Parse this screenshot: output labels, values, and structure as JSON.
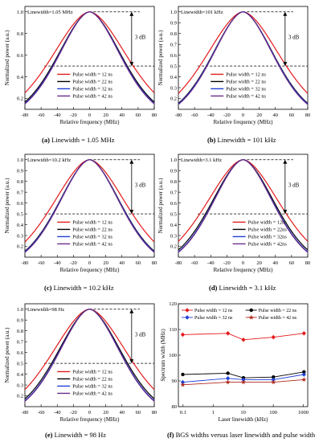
{
  "chart_data": [
    {
      "type": "line",
      "caption_letter": "(a)",
      "caption_text": "Linewidth = 1.05 MHz",
      "annotation": "Linewidth=1.05 MHz",
      "db_label": "3 dB",
      "xlabel": "Relative frequency (MHz)",
      "ylabel": "Normalized power (a.u.)",
      "xlim": [
        -80,
        80
      ],
      "ylim": [
        0.1,
        1.05
      ],
      "xticks": [
        "-80",
        "-60",
        "-40",
        "-20",
        "0",
        "20",
        "40",
        "60",
        "80"
      ],
      "yticks": [
        "0.2",
        "0.4",
        "0.6",
        "0.8",
        "1.0"
      ],
      "legend_position": "lower-center",
      "series": [
        {
          "name": "Pulse width = 12 ns",
          "color": "#e41a1c",
          "fwhm": 108
        },
        {
          "name": "Pulse width = 22 ns",
          "color": "#000000",
          "fwhm": 93
        },
        {
          "name": "Pulse width = 32 ns",
          "color": "#1f3fd6",
          "fwhm": 91
        },
        {
          "name": "Pulse width = 42 ns",
          "color": "#6a2a8a",
          "fwhm": 90
        }
      ]
    },
    {
      "type": "line",
      "caption_letter": "(b)",
      "caption_text": "Linewidth = 101 kHz",
      "annotation": "Linewidth=101 kHz",
      "db_label": "3 dB",
      "xlabel": "Relative frequency (MHz)",
      "ylabel": "Normalized power (a.u.)",
      "xlim": [
        -80,
        80
      ],
      "ylim": [
        0.1,
        1.05
      ],
      "xticks": [
        "-80",
        "-60",
        "-40",
        "-20",
        "0",
        "20",
        "40",
        "60",
        "80"
      ],
      "yticks": [
        "0.2",
        "0.3",
        "0.4",
        "0.5",
        "0.6",
        "0.7",
        "0.8",
        "0.9",
        "1.0"
      ],
      "legend_position": "lower-center",
      "series": [
        {
          "name": "Pulse width = 12 ns",
          "color": "#e41a1c",
          "fwhm": 107
        },
        {
          "name": "Pulse width = 22 ns",
          "color": "#000000",
          "fwhm": 91
        },
        {
          "name": "Pulse width = 32 ns",
          "color": "#1f3fd6",
          "fwhm": 90
        },
        {
          "name": "Pulse width = 42 ns",
          "color": "#6a2a8a",
          "fwhm": 89
        }
      ]
    },
    {
      "type": "line",
      "caption_letter": "(c)",
      "caption_text": "Linewidth = 10.2 kHz",
      "annotation": "Linewidth=10.2 kHz",
      "db_label": "3 dB",
      "xlabel": "Relative frequency (MHz)",
      "ylabel": "Normalized power (a.u.)",
      "xlim": [
        -80,
        80
      ],
      "ylim": [
        0.1,
        1.05
      ],
      "xticks": [
        "-80",
        "-60",
        "-40",
        "-20",
        "0",
        "20",
        "40",
        "60",
        "80"
      ],
      "yticks": [
        "0.2",
        "0.3",
        "0.4",
        "0.5",
        "0.6",
        "0.7",
        "0.8",
        "0.9",
        "1.0"
      ],
      "legend_position": "lower-center",
      "series": [
        {
          "name": "Pulse width = 12 ns",
          "color": "#e41a1c",
          "fwhm": 106
        },
        {
          "name": "Pulse width = 22 ns",
          "color": "#000000",
          "fwhm": 91
        },
        {
          "name": "Pulse width = 32 ns",
          "color": "#1f3fd6",
          "fwhm": 90
        },
        {
          "name": "Pulse width = 42 ns",
          "color": "#6a2a8a",
          "fwhm": 89
        }
      ]
    },
    {
      "type": "line",
      "caption_letter": "(d)",
      "caption_text": "Linewidth = 3.1 kHz",
      "annotation": "Linewidth=3.1 kHz",
      "db_label": "3 dB",
      "xlabel": "Relative frequency (MHz)",
      "ylabel": "Normalized power (a.u.)",
      "xlim": [
        -80,
        80
      ],
      "ylim": [
        0.1,
        1.05
      ],
      "xticks": [
        "-80",
        "-60",
        "-40",
        "-20",
        "0",
        "20",
        "40",
        "60",
        "80"
      ],
      "yticks": [
        "0.2",
        "0.3",
        "0.4",
        "0.5",
        "0.6",
        "0.7",
        "0.8",
        "0.9",
        "1.0"
      ],
      "legend_position": "lower-right",
      "series": [
        {
          "name": "Pulse width = 12ns",
          "color": "#e41a1c",
          "fwhm": 107
        },
        {
          "name": "Pulse width = 22ns",
          "color": "#000000",
          "fwhm": 93
        },
        {
          "name": "Pulse width = 32ns",
          "color": "#1f3fd6",
          "fwhm": 90
        },
        {
          "name": "Pulse width = 42ns",
          "color": "#6a2a8a",
          "fwhm": 89
        }
      ]
    },
    {
      "type": "line",
      "caption_letter": "(e)",
      "caption_text": "Linewidth = 98 Hz",
      "annotation": "Linewidth=98 Hz",
      "db_label": "3 dB",
      "xlabel": "Relative frequency (MHz)",
      "ylabel": "Normalized power (a.u.)",
      "xlim": [
        -80,
        80
      ],
      "ylim": [
        0.1,
        1.05
      ],
      "xticks": [
        "-80",
        "-60",
        "-40",
        "-20",
        "0",
        "20",
        "40",
        "60",
        "80"
      ],
      "yticks": [
        "0.2",
        "0.3",
        "0.4",
        "0.5",
        "0.6",
        "0.7",
        "0.8",
        "0.9",
        "1.0"
      ],
      "legend_position": "lower-center",
      "series": [
        {
          "name": "Pulse width = 12 ns",
          "color": "#e41a1c",
          "fwhm": 109
        },
        {
          "name": "Pulse width = 22 ns",
          "color": "#000000",
          "fwhm": 94
        },
        {
          "name": "Pulse width = 32 ns",
          "color": "#1f3fd6",
          "fwhm": 91
        },
        {
          "name": "Pulse width = 42 ns",
          "color": "#6a2a8a",
          "fwhm": 90
        }
      ]
    },
    {
      "type": "line",
      "caption_letter": "(f)",
      "caption_text": "BGS widths versus laser linewidth and pulse width",
      "xlabel": "Laser linewidth (kHz)",
      "ylabel": "Spectrum width (MHz)",
      "xscale": "log",
      "xlim": [
        0.07,
        1400
      ],
      "ylim": [
        80,
        120
      ],
      "xticks": [
        "0.1",
        "1",
        "10",
        "100",
        "1000"
      ],
      "xtick_values": [
        0.1,
        1,
        10,
        100,
        1000
      ],
      "yticks": [
        "80",
        "90",
        "100",
        "110",
        "120"
      ],
      "legend_position": "top",
      "x": [
        0.098,
        3.1,
        10.2,
        101,
        1050
      ],
      "series": [
        {
          "name": "Pulse width = 12 ns",
          "color": "#e41a1c",
          "marker": "diamond",
          "values": [
            108,
            108.5,
            106,
            107,
            108.5
          ]
        },
        {
          "name": "Pulse width = 22 ns",
          "color": "#000000",
          "marker": "circle",
          "values": [
            92.5,
            93,
            91.2,
            91.5,
            93.5
          ]
        },
        {
          "name": "Pulse width = 32 ns",
          "color": "#1f3fd6",
          "marker": "diamond",
          "values": [
            89.5,
            91,
            90.5,
            90.5,
            92.5
          ]
        },
        {
          "name": "Pulse width = 42 ns",
          "color": "#b0281c",
          "marker": "star",
          "values": [
            88.5,
            89.5,
            89.5,
            89.5,
            90.5
          ]
        }
      ]
    }
  ]
}
